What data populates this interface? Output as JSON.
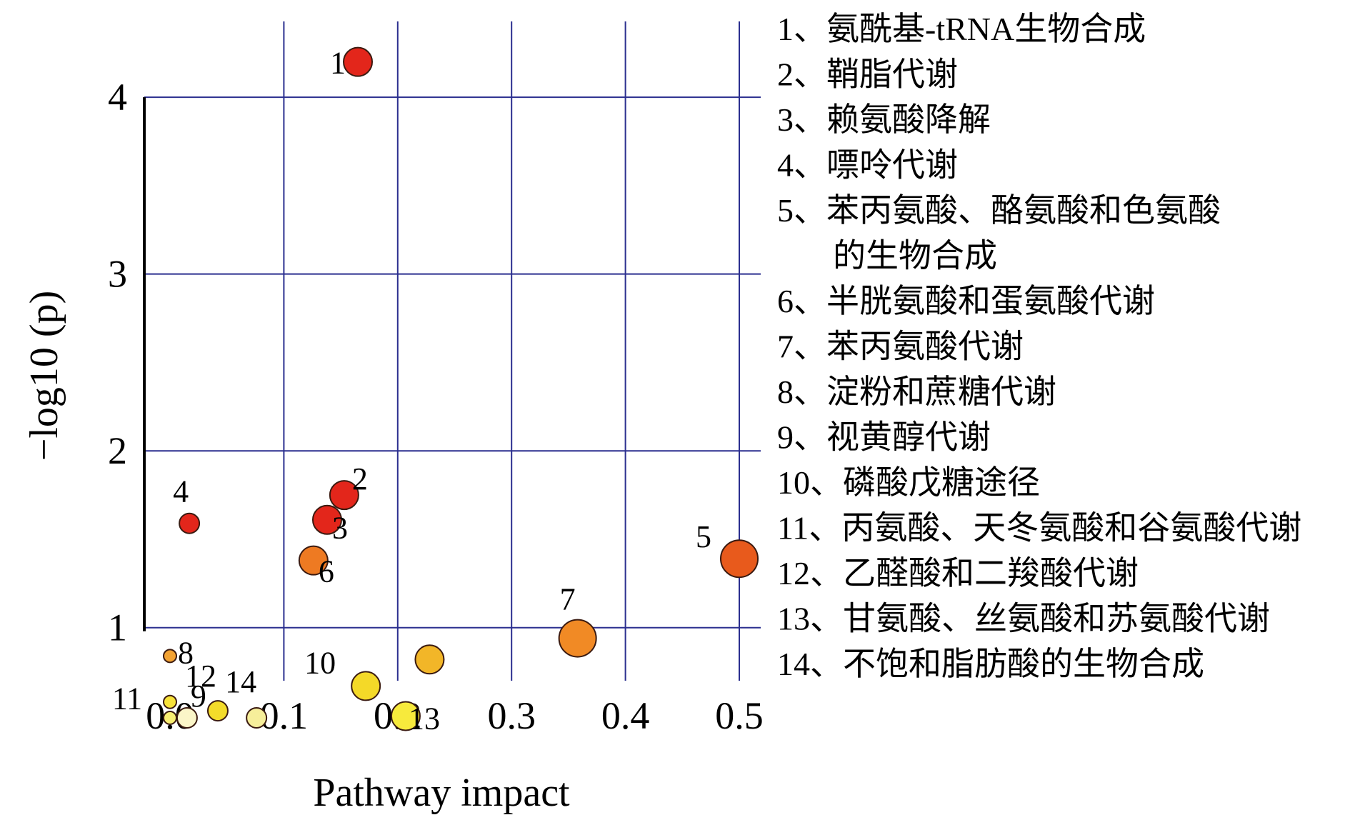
{
  "chart_data": {
    "type": "scatter",
    "xlabel": "Pathway impact",
    "ylabel": "−log10 (p)",
    "xlim": [
      0.0,
      0.5
    ],
    "ylim": [
      0.7,
      4.55
    ],
    "x_ticks": [
      "0.0",
      "0.1",
      "0.2",
      "0.3",
      "0.4",
      "0.5"
    ],
    "y_ticks": [
      "1",
      "2",
      "3",
      "4"
    ],
    "grid": true,
    "grid_color": "#2b2f8f",
    "legend_position": "right",
    "points": [
      {
        "id": "1",
        "x": 0.165,
        "y": 4.2,
        "size": 2,
        "color": "#e3261b"
      },
      {
        "id": "2",
        "x": 0.153,
        "y": 1.75,
        "size": 2,
        "color": "#e3261b"
      },
      {
        "id": "3",
        "x": 0.138,
        "y": 1.61,
        "size": 2,
        "color": "#e3261b"
      },
      {
        "id": "4",
        "x": 0.017,
        "y": 1.59,
        "size": 1,
        "color": "#e3261b"
      },
      {
        "id": "5",
        "x": 0.5,
        "y": 1.39,
        "size": 3,
        "color": "#e85a1c"
      },
      {
        "id": "6",
        "x": 0.126,
        "y": 1.38,
        "size": 2,
        "color": "#ee7a22"
      },
      {
        "id": "7",
        "x": 0.358,
        "y": 0.94,
        "size": 3,
        "color": "#f18a25"
      },
      {
        "id": "8",
        "x": 0.0,
        "y": 0.84,
        "size": 0,
        "color": "#f2a232"
      },
      {
        "id": "9",
        "x": 0.015,
        "y": 0.49,
        "size": 1,
        "color": "#fbf6c8"
      },
      {
        "id": "10",
        "x": 0.172,
        "y": 0.67,
        "size": 2,
        "color": "#f4d928"
      },
      {
        "id": "11",
        "x": 0.0,
        "y": 0.58,
        "size": 0,
        "color": "#f7e23a"
      },
      {
        "id": "12",
        "x": 0.042,
        "y": 0.53,
        "size": 1,
        "color": "#f4dc2a"
      },
      {
        "id": "13",
        "x": 0.207,
        "y": 0.5,
        "size": 2,
        "color": "#f7ea3c"
      },
      {
        "id": "14",
        "x": 0.076,
        "y": 0.49,
        "size": 1,
        "color": "#f6ee9a"
      },
      {
        "id": "",
        "x": 0.228,
        "y": 0.82,
        "size": 2,
        "color": "#f2b628"
      },
      {
        "id": "",
        "x": 0.0,
        "y": 0.49,
        "size": 0,
        "color": "#f8ee72"
      }
    ],
    "legend": [
      {
        "label": "1、氨酰基-tRNA生物合成"
      },
      {
        "label": "2、鞘脂代谢"
      },
      {
        "label": "3、赖氨酸降解"
      },
      {
        "label": "4、嘌呤代谢"
      },
      {
        "label": "5、苯丙氨酸、酪氨酸和色氨酸",
        "continuation": "的生物合成"
      },
      {
        "label": "6、半胱氨酸和蛋氨酸代谢"
      },
      {
        "label": "7、苯丙氨酸代谢"
      },
      {
        "label": "8、淀粉和蔗糖代谢"
      },
      {
        "label": "9、视黄醇代谢"
      },
      {
        "label": "10、磷酸戊糖途径"
      },
      {
        "label": "11、丙氨酸、天冬氨酸和谷氨酸代谢"
      },
      {
        "label": "12、乙醛酸和二羧酸代谢"
      },
      {
        "label": "13、甘氨酸、丝氨酸和苏氨酸代谢"
      },
      {
        "label": "14、不饱和脂肪酸的生物合成"
      }
    ]
  }
}
